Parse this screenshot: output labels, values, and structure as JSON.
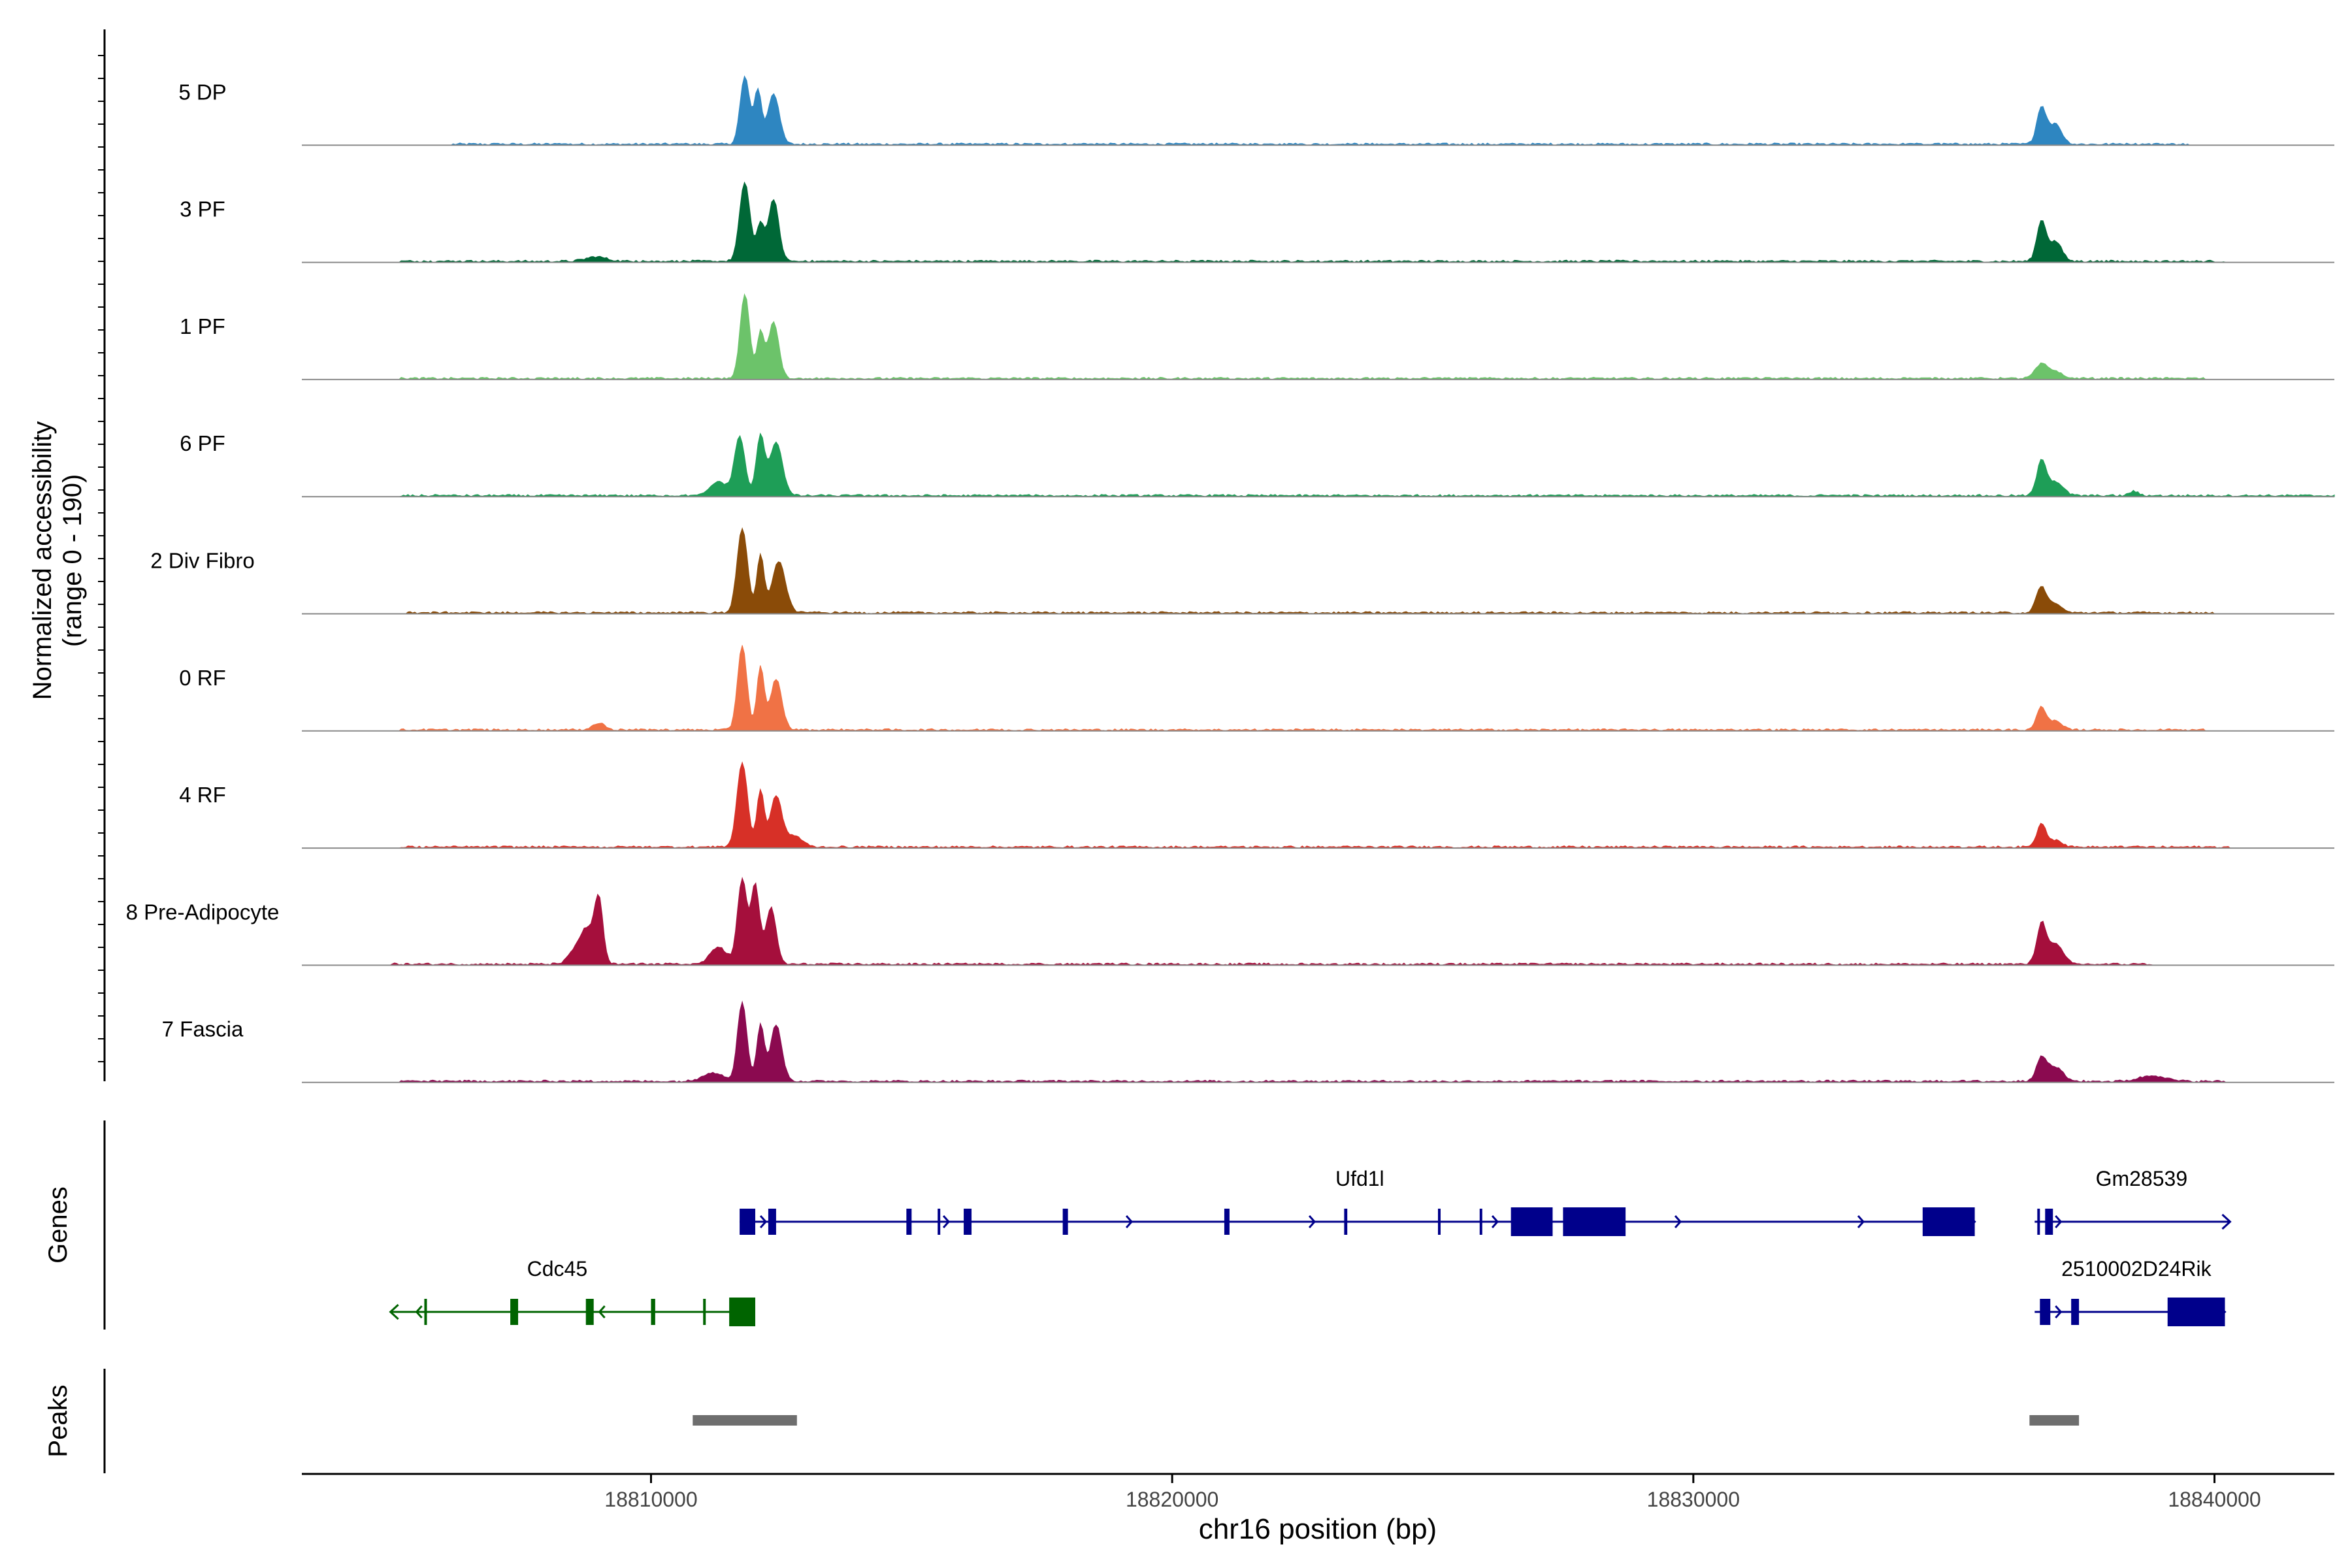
{
  "chart_data": {
    "type": "area",
    "title": "",
    "ylabel": [
      "Normalized accessibility",
      "(range 0 - 190)"
    ],
    "xlabel": "chr16 position (bp)",
    "xlim": [
      18803300,
      18842300
    ],
    "ylim": [
      0,
      190
    ],
    "x_ticks": [
      18810000,
      18820000,
      18830000,
      18840000
    ],
    "x_tick_labels": [
      "18810000",
      "18820000",
      "18830000",
      "18840000"
    ],
    "grid": false,
    "panel_labels": {
      "genes": "Genes",
      "peaks": "Peaks"
    },
    "tracks": [
      {
        "name": "5 DP",
        "color": "#2E86C1",
        "peaks": [
          [
            18811800,
            120,
            90
          ],
          [
            18812050,
            95,
            70
          ],
          [
            18812350,
            90,
            110
          ],
          [
            18836680,
            65,
            90
          ],
          [
            18836950,
            35,
            120
          ]
        ],
        "noise": [
          [
            18806200,
            18839500
          ]
        ]
      },
      {
        "name": "3 PF",
        "color": "#006837",
        "peaks": [
          [
            18811800,
            140,
            100
          ],
          [
            18812100,
            65,
            70
          ],
          [
            18812350,
            110,
            100
          ],
          [
            18808950,
            8,
            200
          ],
          [
            18836680,
            70,
            90
          ],
          [
            18836950,
            35,
            120
          ]
        ],
        "noise": [
          [
            18805200,
            18840200
          ]
        ]
      },
      {
        "name": "1 PF",
        "color": "#6CC36A",
        "peaks": [
          [
            18811800,
            150,
            90
          ],
          [
            18812100,
            80,
            70
          ],
          [
            18812350,
            100,
            100
          ],
          [
            18836680,
            25,
            120
          ],
          [
            18836950,
            12,
            120
          ]
        ],
        "noise": [
          [
            18805200,
            18839800
          ]
        ]
      },
      {
        "name": "6 PF",
        "color": "#1E9E57",
        "peaks": [
          [
            18811700,
            105,
            100
          ],
          [
            18812100,
            105,
            80
          ],
          [
            18812400,
            95,
            120
          ],
          [
            18811300,
            25,
            150
          ],
          [
            18836680,
            60,
            90
          ],
          [
            18836950,
            25,
            140
          ],
          [
            18838450,
            8,
            80
          ]
        ],
        "noise": [
          [
            18805200,
            18842300
          ]
        ]
      },
      {
        "name": "2 Div Fibro",
        "color": "#8A4B08",
        "peaks": [
          [
            18811750,
            150,
            100
          ],
          [
            18812100,
            100,
            70
          ],
          [
            18812450,
            90,
            130
          ],
          [
            18836680,
            45,
            100
          ],
          [
            18836950,
            15,
            120
          ]
        ],
        "noise": [
          [
            18805300,
            18840000
          ]
        ]
      },
      {
        "name": "0 RF",
        "color": "#F07245",
        "peaks": [
          [
            18811750,
            150,
            90
          ],
          [
            18812100,
            110,
            70
          ],
          [
            18812400,
            90,
            110
          ],
          [
            18809000,
            12,
            120
          ],
          [
            18836680,
            40,
            90
          ],
          [
            18836950,
            15,
            120
          ]
        ],
        "noise": [
          [
            18805200,
            18839800
          ]
        ]
      },
      {
        "name": "4 RF",
        "color": "#D73027",
        "peaks": [
          [
            18811750,
            150,
            100
          ],
          [
            18812100,
            100,
            70
          ],
          [
            18812400,
            90,
            110
          ],
          [
            18812750,
            20,
            150
          ],
          [
            18836680,
            40,
            90
          ],
          [
            18836950,
            12,
            120
          ]
        ],
        "noise": [
          [
            18805200,
            18840300
          ]
        ]
      },
      {
        "name": "8 Pre-Adipocyte",
        "color": "#A50F3C",
        "peaks": [
          [
            18809000,
            110,
            80
          ],
          [
            18808800,
            50,
            120
          ],
          [
            18808600,
            30,
            150
          ],
          [
            18811750,
            150,
            90
          ],
          [
            18812000,
            140,
            80
          ],
          [
            18812300,
            100,
            100
          ],
          [
            18811300,
            30,
            160
          ],
          [
            18836680,
            70,
            90
          ],
          [
            18836950,
            35,
            140
          ]
        ],
        "noise": [
          [
            18805000,
            18838800
          ]
        ]
      },
      {
        "name": "7 Fascia",
        "color": "#8B0A50",
        "peaks": [
          [
            18811750,
            140,
            90
          ],
          [
            18812100,
            100,
            70
          ],
          [
            18812400,
            100,
            110
          ],
          [
            18811200,
            15,
            200
          ],
          [
            18836680,
            40,
            100
          ],
          [
            18836950,
            25,
            140
          ],
          [
            18838800,
            10,
            250
          ]
        ],
        "noise": [
          [
            18805200,
            18840200
          ]
        ]
      }
    ],
    "genes": [
      {
        "name": "Ufd1l",
        "strand": "+",
        "color": "#00008B",
        "start": 18811700,
        "end": 18835400,
        "row": 1,
        "label_x": 18823600,
        "exons": [
          [
            18811700,
            18812000
          ],
          [
            18812250,
            18812400
          ],
          [
            18814900,
            18815000
          ],
          [
            18815500,
            18815550
          ],
          [
            18816000,
            18816150
          ],
          [
            18817900,
            18818000
          ],
          [
            18821000,
            18821100
          ],
          [
            18823300,
            18823360
          ],
          [
            18825100,
            18825150
          ],
          [
            18825900,
            18825950
          ],
          [
            18826500,
            18827300
          ],
          [
            18827500,
            18828700
          ],
          [
            18834400,
            18835400
          ]
        ]
      },
      {
        "name": "Gm28539",
        "strand": "+",
        "color": "#00008B",
        "start": 18836550,
        "end": 18840300,
        "row": 1,
        "label_x": 18838600,
        "exons": [
          [
            18836600,
            18836650
          ],
          [
            18836750,
            18836900
          ]
        ]
      },
      {
        "name": "Cdc45",
        "strand": "-",
        "color": "#006400",
        "start": 18805000,
        "end": 18812000,
        "row": 2,
        "label_x": 18808200,
        "exons": [
          [
            18805650,
            18805700
          ],
          [
            18807300,
            18807450
          ],
          [
            18808750,
            18808900
          ],
          [
            18810000,
            18810080
          ],
          [
            18811000,
            18811050
          ],
          [
            18811500,
            18812000
          ]
        ]
      },
      {
        "name": "2510002D24Rik",
        "strand": "+",
        "color": "#00008B",
        "start": 18836550,
        "end": 18840200,
        "row": 2,
        "label_x": 18838500,
        "exons": [
          [
            18836650,
            18836850
          ],
          [
            18837250,
            18837400
          ],
          [
            18839100,
            18840200
          ]
        ]
      }
    ],
    "peak_regions": [
      [
        18810800,
        18812800
      ],
      [
        18836450,
        18837400
      ]
    ]
  }
}
